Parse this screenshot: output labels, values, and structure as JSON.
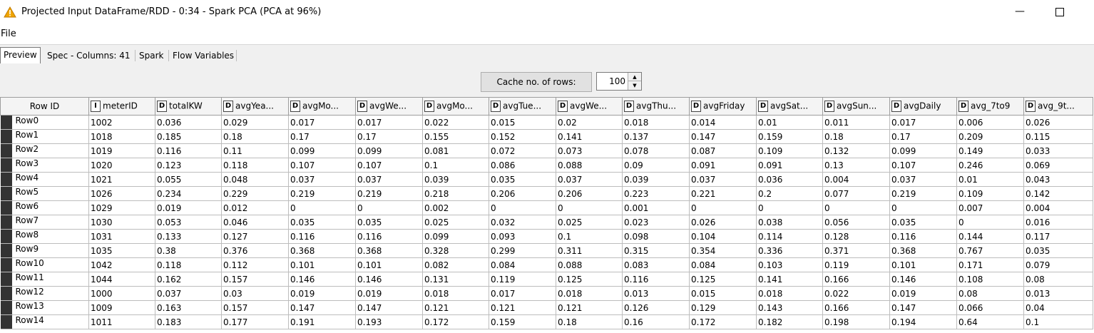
{
  "window": {
    "title": "Projected Input DataFrame/RDD - 0:34 - Spark PCA (PCA at 96%)",
    "accent_color": "#f0a500"
  },
  "menu": {
    "file": "File"
  },
  "tabs": [
    {
      "label": "Preview",
      "active": true
    },
    {
      "label": "Spec - Columns: 41"
    },
    {
      "label": "Spark"
    },
    {
      "label": "Flow Variables"
    }
  ],
  "cache": {
    "button_label": "Cache no. of rows:",
    "value": "100"
  },
  "table": {
    "row_id_header": "Row ID",
    "columns": [
      {
        "type": "I",
        "name": "meterID"
      },
      {
        "type": "D",
        "name": "totalKW"
      },
      {
        "type": "D",
        "name": "avgYea..."
      },
      {
        "type": "D",
        "name": "avgMo..."
      },
      {
        "type": "D",
        "name": "avgWe..."
      },
      {
        "type": "D",
        "name": "avgMo..."
      },
      {
        "type": "D",
        "name": "avgTue..."
      },
      {
        "type": "D",
        "name": "avgWe..."
      },
      {
        "type": "D",
        "name": "avgThu..."
      },
      {
        "type": "D",
        "name": "avgFriday"
      },
      {
        "type": "D",
        "name": "avgSat..."
      },
      {
        "type": "D",
        "name": "avgSun..."
      },
      {
        "type": "D",
        "name": "avgDaily"
      },
      {
        "type": "D",
        "name": "avg_7to9"
      },
      {
        "type": "D",
        "name": "avg_9t..."
      }
    ],
    "rows": [
      {
        "id": "Row0",
        "cells": [
          "1002",
          "0.036",
          "0.029",
          "0.017",
          "0.017",
          "0.022",
          "0.015",
          "0.02",
          "0.018",
          "0.014",
          "0.01",
          "0.011",
          "0.017",
          "0.006",
          "0.026"
        ]
      },
      {
        "id": "Row1",
        "cells": [
          "1018",
          "0.185",
          "0.18",
          "0.17",
          "0.17",
          "0.155",
          "0.152",
          "0.141",
          "0.137",
          "0.147",
          "0.159",
          "0.18",
          "0.17",
          "0.209",
          "0.115"
        ]
      },
      {
        "id": "Row2",
        "cells": [
          "1019",
          "0.116",
          "0.11",
          "0.099",
          "0.099",
          "0.081",
          "0.072",
          "0.073",
          "0.078",
          "0.087",
          "0.109",
          "0.132",
          "0.099",
          "0.149",
          "0.033"
        ]
      },
      {
        "id": "Row3",
        "cells": [
          "1020",
          "0.123",
          "0.118",
          "0.107",
          "0.107",
          "0.1",
          "0.086",
          "0.088",
          "0.09",
          "0.091",
          "0.091",
          "0.13",
          "0.107",
          "0.246",
          "0.069"
        ]
      },
      {
        "id": "Row4",
        "cells": [
          "1021",
          "0.055",
          "0.048",
          "0.037",
          "0.037",
          "0.039",
          "0.035",
          "0.037",
          "0.039",
          "0.037",
          "0.036",
          "0.004",
          "0.037",
          "0.01",
          "0.043"
        ]
      },
      {
        "id": "Row5",
        "cells": [
          "1026",
          "0.234",
          "0.229",
          "0.219",
          "0.219",
          "0.218",
          "0.206",
          "0.206",
          "0.223",
          "0.221",
          "0.2",
          "0.077",
          "0.219",
          "0.109",
          "0.142"
        ]
      },
      {
        "id": "Row6",
        "cells": [
          "1029",
          "0.019",
          "0.012",
          "0",
          "0",
          "0.002",
          "0",
          "0",
          "0.001",
          "0",
          "0",
          "0",
          "0",
          "0.007",
          "0.004"
        ]
      },
      {
        "id": "Row7",
        "cells": [
          "1030",
          "0.053",
          "0.046",
          "0.035",
          "0.035",
          "0.025",
          "0.032",
          "0.025",
          "0.023",
          "0.026",
          "0.038",
          "0.056",
          "0.035",
          "0",
          "0.016"
        ]
      },
      {
        "id": "Row8",
        "cells": [
          "1031",
          "0.133",
          "0.127",
          "0.116",
          "0.116",
          "0.099",
          "0.093",
          "0.1",
          "0.098",
          "0.104",
          "0.114",
          "0.128",
          "0.116",
          "0.144",
          "0.117"
        ]
      },
      {
        "id": "Row9",
        "cells": [
          "1035",
          "0.38",
          "0.376",
          "0.368",
          "0.368",
          "0.328",
          "0.299",
          "0.311",
          "0.315",
          "0.354",
          "0.336",
          "0.371",
          "0.368",
          "0.767",
          "0.035"
        ]
      },
      {
        "id": "Row10",
        "cells": [
          "1042",
          "0.118",
          "0.112",
          "0.101",
          "0.101",
          "0.082",
          "0.084",
          "0.088",
          "0.083",
          "0.084",
          "0.103",
          "0.119",
          "0.101",
          "0.171",
          "0.079"
        ]
      },
      {
        "id": "Row11",
        "cells": [
          "1044",
          "0.162",
          "0.157",
          "0.146",
          "0.146",
          "0.131",
          "0.119",
          "0.125",
          "0.116",
          "0.125",
          "0.141",
          "0.166",
          "0.146",
          "0.108",
          "0.08"
        ]
      },
      {
        "id": "Row12",
        "cells": [
          "1000",
          "0.037",
          "0.03",
          "0.019",
          "0.019",
          "0.018",
          "0.017",
          "0.018",
          "0.013",
          "0.015",
          "0.018",
          "0.022",
          "0.019",
          "0.08",
          "0.013"
        ]
      },
      {
        "id": "Row13",
        "cells": [
          "1009",
          "0.163",
          "0.157",
          "0.147",
          "0.147",
          "0.121",
          "0.121",
          "0.121",
          "0.126",
          "0.129",
          "0.143",
          "0.166",
          "0.147",
          "0.066",
          "0.04"
        ]
      },
      {
        "id": "Row14",
        "cells": [
          "1011",
          "0.183",
          "0.177",
          "0.191",
          "0.193",
          "0.172",
          "0.159",
          "0.18",
          "0.16",
          "0.172",
          "0.182",
          "0.198",
          "0.194",
          "0.64",
          "0.1"
        ]
      }
    ]
  }
}
